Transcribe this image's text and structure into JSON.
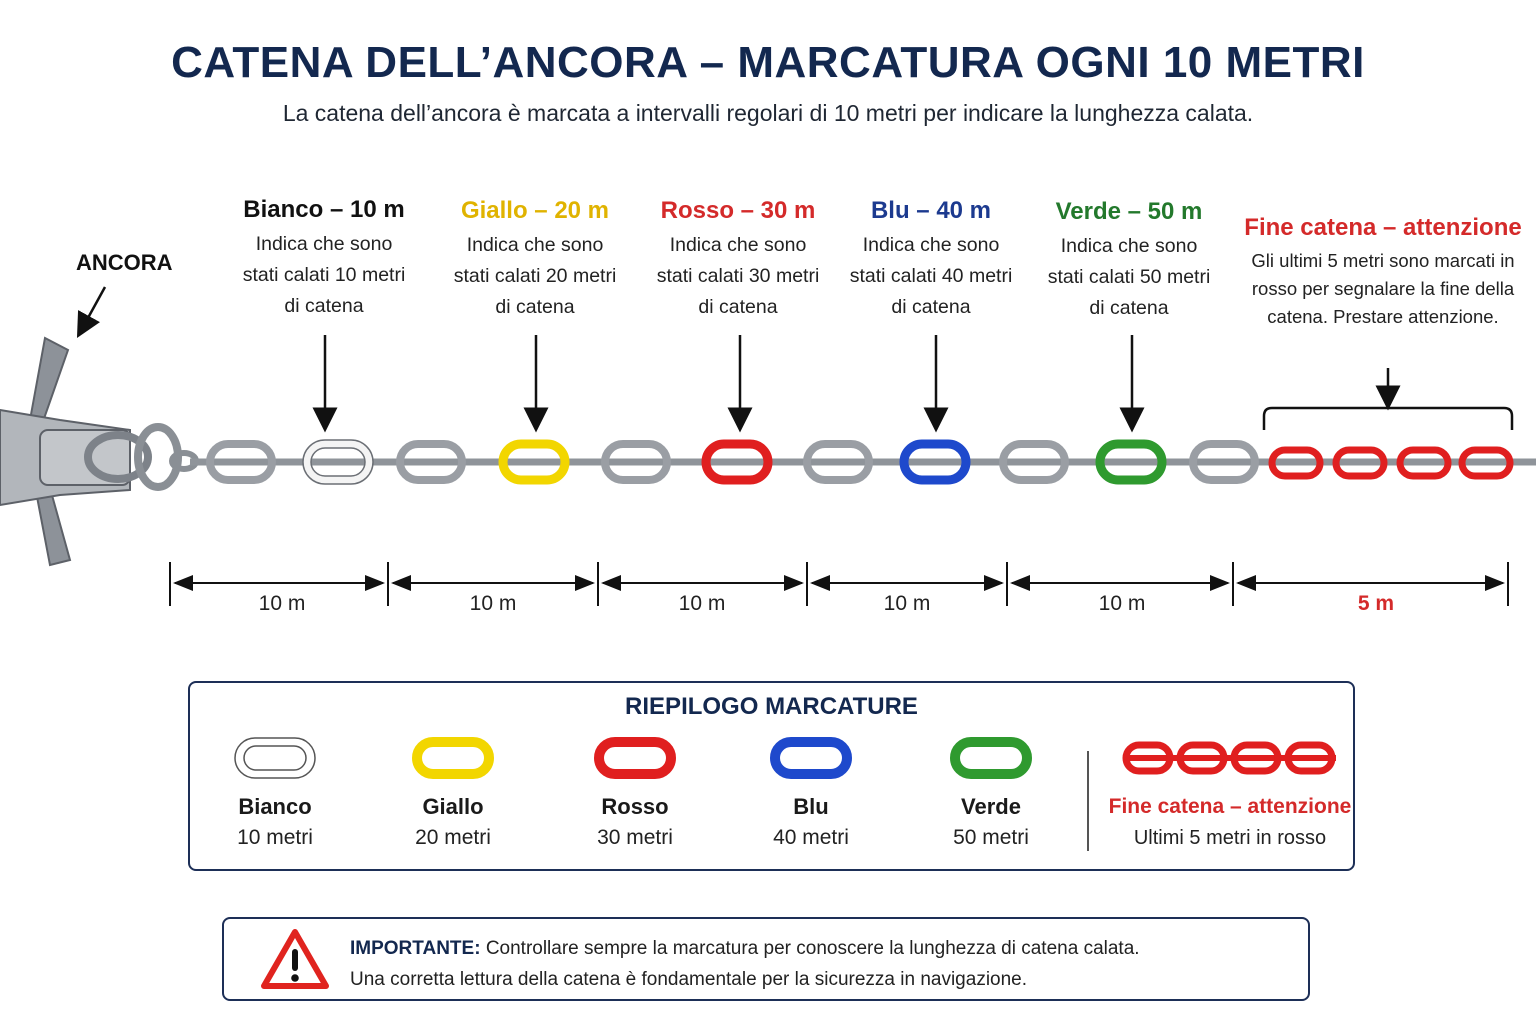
{
  "header": {
    "title": "CATENA DELL’ANCORA – MARCATURA OGNI 10 METRI",
    "subtitle": "La catena dell’ancora è marcata a intervalli regolari di 10 metri per indicare la lunghezza calata."
  },
  "anchor_label": "ANCORA",
  "markers": [
    {
      "title": "Bianco – 10 m",
      "desc": "Indica che sono stati calati 10 metri di catena",
      "color": "#111111",
      "link_color": "#ffffff"
    },
    {
      "title": "Giallo – 20 m",
      "desc": "Indica che sono stati calati 20 metri di catena",
      "color": "#e0b300",
      "link_color": "#f2d600"
    },
    {
      "title": "Rosso – 30 m",
      "desc": "Indica che sono stati calati 30 metri di catena",
      "color": "#d42a2a",
      "link_color": "#e01f1f"
    },
    {
      "title": "Blu – 40 m",
      "desc": "Indica che sono stati calati 40 metri di catena",
      "color": "#1c3a8f",
      "link_color": "#1e49cc"
    },
    {
      "title": "Verde – 50 m",
      "desc": "Indica che sono stati calati 50 metri di catena",
      "color": "#23792c",
      "link_color": "#2f9a2f"
    }
  ],
  "end_marker": {
    "title": "Fine catena – attenzione",
    "desc": "Gli ultimi 5 metri sono marcati in rosso per segnalare la fine della catena. Prestare attenzione.",
    "color": "#d42a2a"
  },
  "segments": [
    "10 m",
    "10 m",
    "10 m",
    "10 m",
    "10 m",
    "5 m"
  ],
  "summary": {
    "title": "RIEPILOGO MARCATURE",
    "items": [
      {
        "name": "Bianco",
        "value": "10 metri",
        "color": "#ffffff"
      },
      {
        "name": "Giallo",
        "value": "20 metri",
        "color": "#f2d600"
      },
      {
        "name": "Rosso",
        "value": "30 metri",
        "color": "#e01f1f"
      },
      {
        "name": "Blu",
        "value": "40 metri",
        "color": "#1e49cc"
      },
      {
        "name": "Verde",
        "value": "50 metri",
        "color": "#2f9a2f"
      }
    ],
    "end": {
      "name": "Fine catena – attenzione",
      "value": "Ultimi 5 metri in rosso",
      "color": "#e01f1f"
    }
  },
  "warning": {
    "label": "IMPORTANTE:",
    "line1": "Controllare sempre la marcatura per conoscere la lunghezza di catena calata.",
    "line2": "Una corretta lettura della catena è fondamentale per la sicurezza in navigazione.",
    "icon": "warning-triangle-icon"
  },
  "colors": {
    "title": "#13284f",
    "steel": "#9a9ea4",
    "danger": "#d42a2a"
  }
}
